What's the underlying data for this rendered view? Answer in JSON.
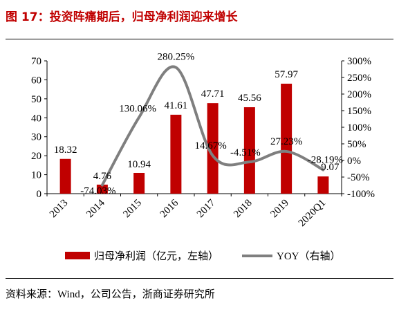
{
  "header": {
    "title": "图 17：投资阵痛期后，归母净利润迎来增长"
  },
  "footer": {
    "source": "资料来源：Wind，公司公告，浙商证券研究所"
  },
  "colors": {
    "bar": "#c00000",
    "line": "#7f7f7f",
    "title": "#c00000"
  },
  "chart_data": {
    "type": "bar",
    "title": "图 17：投资阵痛期后，归母净利润迎来增长",
    "categories": [
      "2013",
      "2014",
      "2015",
      "2016",
      "2017",
      "2018",
      "2019",
      "2020Q1"
    ],
    "series": [
      {
        "name": "归母净利润（亿元，左轴）",
        "type": "bar",
        "axis": "left",
        "values": [
          18.32,
          4.76,
          10.94,
          41.61,
          47.71,
          45.56,
          57.97,
          9.07
        ],
        "labels": [
          "18.32",
          "4.76",
          "10.94",
          "41.61",
          "47.71",
          "45.56",
          "57.97",
          "9.07"
        ]
      },
      {
        "name": "YOY（右轴）",
        "type": "line",
        "axis": "right",
        "smooth": true,
        "values": [
          null,
          -74.03,
          130.06,
          280.25,
          14.67,
          -4.51,
          27.23,
          -28.19
        ],
        "labels": [
          "",
          "-74.03%",
          "130.06%",
          "280.25%",
          "14.67%",
          "-4.51%",
          "27.23%",
          "-28.19%"
        ]
      }
    ],
    "y_left": {
      "min": 0,
      "max": 70,
      "ticks": [
        "0",
        "10",
        "20",
        "30",
        "40",
        "50",
        "60",
        "70"
      ]
    },
    "y_right": {
      "min": -100,
      "max": 300,
      "ticks": [
        "-100%",
        "-50%",
        "0%",
        "50%",
        "100%",
        "150%",
        "200%",
        "250%",
        "300%"
      ]
    },
    "grid": false,
    "legend": "bottom"
  }
}
